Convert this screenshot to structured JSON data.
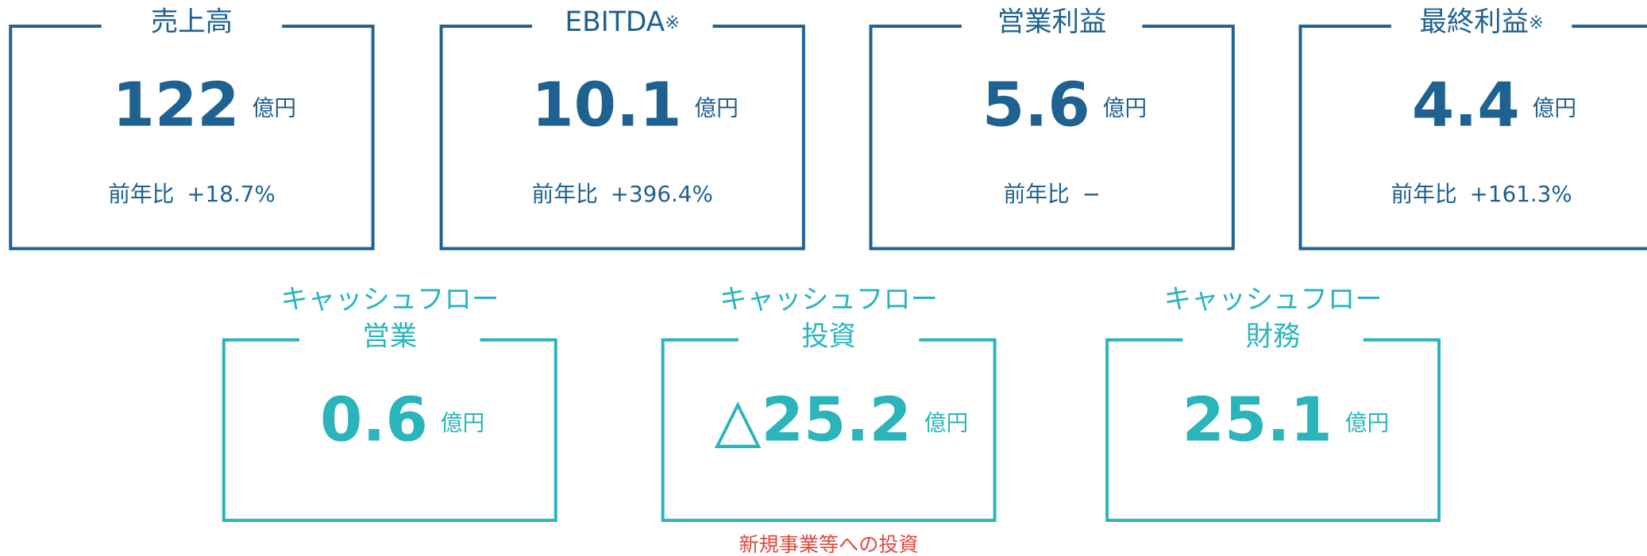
{
  "kpis": [
    {
      "title": "売上高",
      "value": "122",
      "unit": "億円",
      "comparison_label": "前年比",
      "comparison_value": "+18.7%"
    },
    {
      "title": "EBITDA",
      "title_mark": "※",
      "value": "10.1",
      "unit": "億円",
      "comparison_label": "前年比",
      "comparison_value": "+396.4%"
    },
    {
      "title": "営業利益",
      "value": "5.6",
      "unit": "億円",
      "comparison_label": "前年比",
      "comparison_value": "−"
    },
    {
      "title": "最終利益",
      "title_mark": "※",
      "value": "4.4",
      "unit": "億円",
      "comparison_label": "前年比",
      "comparison_value": "+161.3%"
    }
  ],
  "cashflow": [
    {
      "title_line1": "キャッシュフロー",
      "title_line2": "営業",
      "value": "0.6",
      "unit": "億円"
    },
    {
      "title_line1": "キャッシュフロー",
      "title_line2": "投資",
      "value": "△25.2",
      "unit": "億円"
    },
    {
      "title_line1": "キャッシュフロー",
      "title_line2": "財務",
      "value": "25.1",
      "unit": "億円"
    }
  ],
  "note": "新規事業等への投資"
}
